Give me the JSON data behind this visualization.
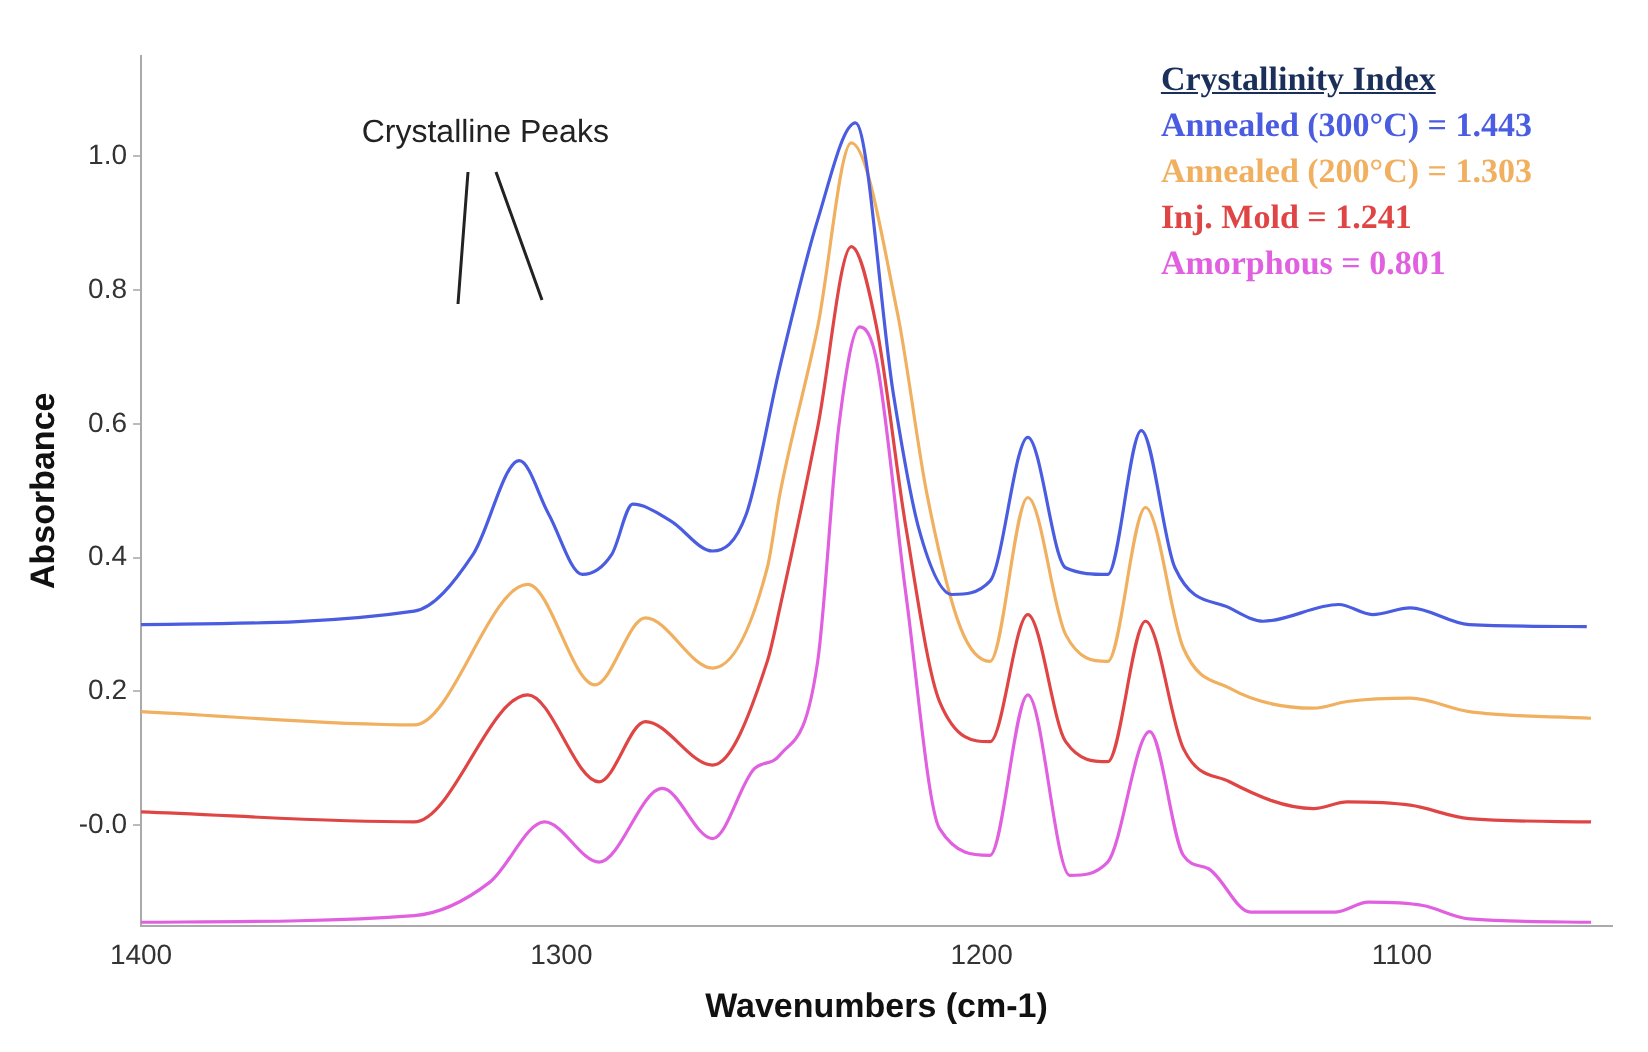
{
  "chart_data": {
    "type": "line",
    "xlabel": "Wavenumbers (cm-1)",
    "ylabel": "Absorbance",
    "legend_title": "Crystallinity Index",
    "legend": "top right",
    "marker": "none",
    "line_style": "solid",
    "annotations": [
      "Crystalline Peaks"
    ],
    "xlim": [
      1400,
      1050
    ],
    "xticks": [
      1400,
      1300,
      1200,
      1100
    ],
    "ylim": [
      -0.15,
      1.15
    ],
    "yticks": [
      {
        "value": 0,
        "label": "-0.0"
      },
      0.2,
      0.4,
      0.6,
      0.8,
      {
        "value": 1,
        "label": "1.0"
      }
    ],
    "series": [
      {
        "name": "Annealed (300°C) = 1.443",
        "color": "#4a5ce0",
        "x": [
          1400,
          1335,
          1321,
          1310,
          1303,
          1295,
          1288,
          1283,
          1274,
          1264,
          1256,
          1248,
          1239,
          1230,
          1221,
          1215,
          1207,
          1198,
          1189,
          1180,
          1170,
          1162,
          1154,
          1141,
          1133,
          1115,
          1107,
          1098,
          1084,
          1056
        ],
        "values": [
          0.3,
          0.32,
          0.405,
          0.545,
          0.465,
          0.375,
          0.405,
          0.48,
          0.455,
          0.41,
          0.465,
          0.685,
          0.905,
          1.05,
          0.645,
          0.445,
          0.345,
          0.365,
          0.58,
          0.385,
          0.375,
          0.59,
          0.385,
          0.325,
          0.305,
          0.33,
          0.315,
          0.325,
          0.3,
          0.297
        ]
      },
      {
        "name": "Annealed (200°C) = 1.303",
        "color": "#f0b060",
        "x": [
          1400,
          1335,
          1308,
          1292,
          1280,
          1264,
          1251,
          1248,
          1239,
          1231,
          1220,
          1213,
          1205,
          1198,
          1189,
          1180,
          1170,
          1161,
          1152,
          1141,
          1121,
          1113,
          1098,
          1084,
          1055
        ],
        "values": [
          0.17,
          0.15,
          0.36,
          0.21,
          0.31,
          0.235,
          0.385,
          0.495,
          0.745,
          1.02,
          0.765,
          0.495,
          0.295,
          0.245,
          0.49,
          0.285,
          0.245,
          0.475,
          0.265,
          0.205,
          0.175,
          0.185,
          0.19,
          0.17,
          0.16
        ]
      },
      {
        "name": "Inj. Mold = 1.241",
        "color": "#e04545",
        "x": [
          1400,
          1335,
          1308,
          1291,
          1280,
          1264,
          1251,
          1248,
          1239,
          1231,
          1225,
          1218,
          1210,
          1198,
          1189,
          1180,
          1170,
          1161,
          1152,
          1141,
          1121,
          1113,
          1098,
          1084,
          1055
        ],
        "values": [
          0.02,
          0.005,
          0.195,
          0.065,
          0.155,
          0.09,
          0.245,
          0.325,
          0.595,
          0.865,
          0.745,
          0.445,
          0.185,
          0.125,
          0.315,
          0.125,
          0.095,
          0.305,
          0.115,
          0.065,
          0.025,
          0.035,
          0.03,
          0.01,
          0.005
        ]
      },
      {
        "name": "Amorphous = 0.801",
        "color": "#e060e0",
        "x": [
          1400,
          1335,
          1317,
          1304,
          1291,
          1276,
          1264,
          1254,
          1248,
          1239,
          1234,
          1229,
          1225,
          1218,
          1210,
          1198,
          1189,
          1179,
          1170,
          1160,
          1152,
          1146,
          1136,
          1116,
          1108,
          1095,
          1084,
          1055
        ],
        "values": [
          -0.145,
          -0.135,
          -0.085,
          0.005,
          -0.055,
          0.055,
          -0.02,
          0.085,
          0.105,
          0.245,
          0.595,
          0.745,
          0.695,
          0.345,
          -0.005,
          -0.045,
          0.195,
          -0.075,
          -0.055,
          0.14,
          -0.045,
          -0.065,
          -0.13,
          -0.13,
          -0.115,
          -0.12,
          -0.14,
          -0.145
        ]
      }
    ]
  }
}
